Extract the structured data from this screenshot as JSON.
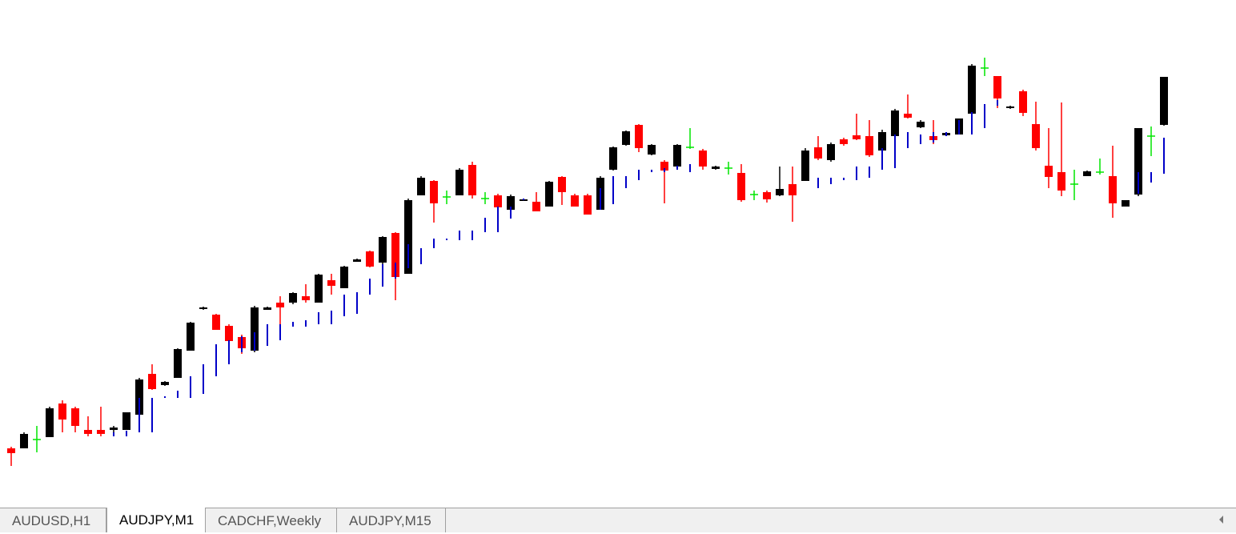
{
  "chart_data": {
    "type": "candlestick",
    "open": [
      40,
      40,
      51,
      54,
      96,
      90,
      63,
      63,
      63,
      63,
      82,
      133,
      119,
      128,
      162,
      214,
      207,
      193,
      179,
      162,
      213,
      222,
      222,
      230,
      222,
      250,
      240,
      273,
      286,
      272,
      309,
      258,
      356,
      374,
      354,
      356,
      394,
      352,
      356,
      338,
      349,
      348,
      342,
      379,
      356,
      356,
      338,
      388,
      419,
      444,
      407,
      398,
      392,
      416,
      412,
      389,
      390,
      384,
      357,
      360,
      356,
      370,
      374,
      416,
      400,
      426,
      431,
      430,
      412,
      430,
      458,
      441,
      430,
      431,
      432,
      458,
      515,
      505,
      465,
      486,
      445,
      393,
      385,
      370,
      380,
      385,
      380,
      342,
      357,
      430,
      444
    ],
    "high": [
      42,
      60,
      68,
      92,
      100,
      92,
      80,
      92,
      68,
      85,
      128,
      145,
      124,
      165,
      198,
      217,
      208,
      195,
      182,
      218,
      217,
      230,
      235,
      245,
      258,
      258,
      268,
      277,
      287,
      305,
      310,
      352,
      380,
      375,
      362,
      390,
      398,
      360,
      358,
      357,
      352,
      360,
      374,
      380,
      358,
      358,
      380,
      417,
      437,
      445,
      420,
      400,
      420,
      440,
      414,
      393,
      398,
      395,
      362,
      362,
      392,
      392,
      415,
      430,
      422,
      428,
      458,
      450,
      438,
      464,
      482,
      450,
      450,
      435,
      452,
      520,
      528,
      505,
      468,
      488,
      473,
      440,
      472,
      388,
      387,
      402,
      418,
      350,
      440,
      442,
      504
    ],
    "low": [
      18,
      40,
      35,
      54,
      60,
      60,
      55,
      55,
      60,
      63,
      82,
      113,
      118,
      128,
      162,
      213,
      188,
      172,
      158,
      160,
      213,
      190,
      220,
      222,
      222,
      232,
      240,
      273,
      266,
      270,
      225,
      258,
      356,
      322,
      345,
      356,
      352,
      345,
      338,
      338,
      349,
      336,
      342,
      344,
      342,
      332,
      338,
      387,
      418,
      410,
      406,
      346,
      390,
      414,
      388,
      388,
      382,
      348,
      350,
      347,
      355,
      323,
      374,
      400,
      398,
      418,
      425,
      404,
      412,
      430,
      452,
      440,
      420,
      430,
      432,
      458,
      505,
      465,
      464,
      455,
      412,
      365,
      355,
      350,
      380,
      382,
      328,
      342,
      355,
      405,
      443
    ],
    "close": [
      34,
      58,
      51,
      90,
      76,
      68,
      58,
      58,
      66,
      85,
      126,
      114,
      123,
      164,
      197,
      216,
      188,
      174,
      165,
      216,
      216,
      216,
      234,
      225,
      257,
      243,
      267,
      276,
      267,
      304,
      254,
      350,
      378,
      346,
      354,
      388,
      356,
      352,
      341,
      355,
      351,
      336,
      373,
      360,
      342,
      332,
      378,
      416,
      436,
      415,
      419,
      387,
      419,
      416,
      392,
      392,
      390,
      350,
      357,
      351,
      364,
      356,
      412,
      402,
      420,
      420,
      426,
      406,
      435,
      462,
      453,
      448,
      425,
      434,
      452,
      518,
      515,
      477,
      467,
      459,
      415,
      379,
      362,
      370,
      386,
      385,
      346,
      350,
      440,
      430,
      504
    ],
    "up_color": "#000000",
    "down_color": "#ff0000",
    "doji_color": "#00e600",
    "ylim": [
      0,
      600
    ],
    "overlay": {
      "color": "#0000c8",
      "high": [
        null,
        null,
        null,
        null,
        null,
        null,
        null,
        null,
        60,
        62,
        103,
        103,
        105,
        112,
        130,
        145,
        170,
        175,
        180,
        185,
        195,
        195,
        198,
        200,
        210,
        212,
        232,
        235,
        252,
        270,
        272,
        295,
        290,
        302,
        302,
        312,
        312,
        328,
        342,
        342,
        352,
        null,
        null,
        null,
        null,
        null,
        365,
        380,
        380,
        388,
        388,
        390,
        393,
        395,
        null,
        null,
        null,
        null,
        null,
        null,
        null,
        null,
        null,
        378,
        378,
        378,
        392,
        392,
        415,
        432,
        435,
        432,
        435,
        435,
        450,
        460,
        470,
        475,
        null,
        null,
        null,
        null,
        null,
        null,
        null,
        null,
        null,
        null,
        385,
        385,
        428
      ],
      "low": [
        null,
        null,
        null,
        null,
        null,
        null,
        null,
        null,
        55,
        55,
        60,
        60,
        103,
        103,
        103,
        108,
        130,
        145,
        160,
        162,
        168,
        175,
        192,
        192,
        195,
        195,
        205,
        208,
        232,
        242,
        252,
        265,
        270,
        290,
        300,
        300,
        300,
        310,
        310,
        327,
        350,
        null,
        null,
        null,
        null,
        null,
        338,
        345,
        365,
        375,
        385,
        385,
        388,
        385,
        null,
        null,
        null,
        null,
        null,
        null,
        null,
        null,
        null,
        365,
        370,
        375,
        375,
        378,
        388,
        390,
        415,
        420,
        422,
        430,
        432,
        432,
        440,
        468,
        null,
        null,
        null,
        null,
        null,
        null,
        null,
        null,
        null,
        null,
        358,
        372,
        383
      ]
    }
  },
  "tabs": [
    "AUDUSD,H1",
    "AUDJPY,M1",
    "CADCHF,Weekly",
    "AUDJPY,M15"
  ],
  "active_tab": 1
}
